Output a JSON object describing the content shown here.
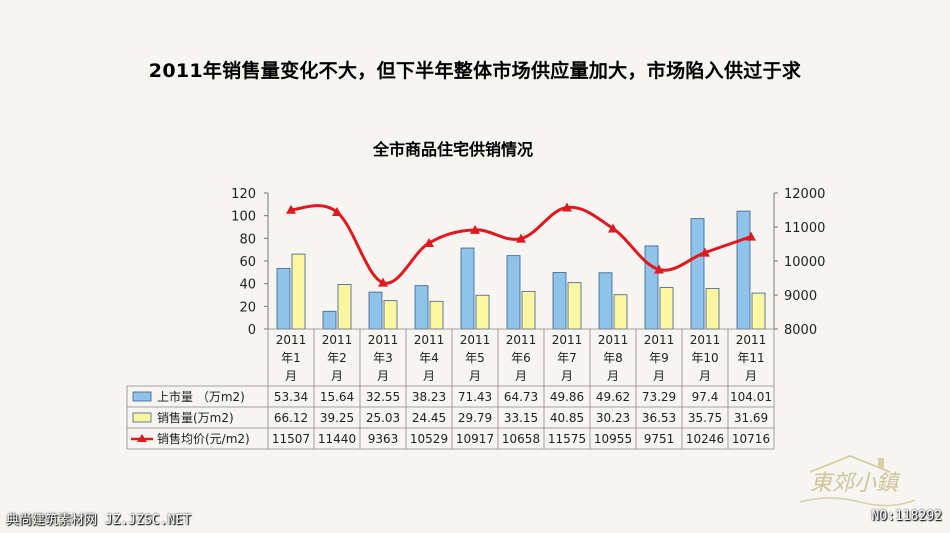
{
  "headline": "2011年销售量变化不大，但下半年整体市场供应量加大，市场陷入供过于求",
  "chart_data": {
    "type": "bar",
    "title": "全市商品住宅供销情况",
    "categories": [
      "2011年1月",
      "2011年2月",
      "2011年3月",
      "2011年4月",
      "2011年5月",
      "2011年6月",
      "2011年7月",
      "2011年8月",
      "2011年9月",
      "2011年10月",
      "2011年11月"
    ],
    "category_lines": [
      [
        "2011",
        "年1",
        "月"
      ],
      [
        "2011",
        "年2",
        "月"
      ],
      [
        "2011",
        "年3",
        "月"
      ],
      [
        "2011",
        "年4",
        "月"
      ],
      [
        "2011",
        "年5",
        "月"
      ],
      [
        "2011",
        "年6",
        "月"
      ],
      [
        "2011",
        "年7",
        "月"
      ],
      [
        "2011",
        "年8",
        "月"
      ],
      [
        "2011",
        "年9",
        "月"
      ],
      [
        "2011",
        "年10",
        "月"
      ],
      [
        "2011",
        "年11",
        "月"
      ]
    ],
    "series": [
      {
        "name": "上市量 （万m2)",
        "type": "bar",
        "axis": "left",
        "color": "#8fc3ea",
        "values": [
          53.34,
          15.64,
          32.55,
          38.23,
          71.43,
          64.73,
          49.86,
          49.62,
          73.29,
          97.4,
          104.01
        ],
        "labels": [
          "53.34",
          "15.64",
          "32.55",
          "38.23",
          "71.43",
          "64.73",
          "49.86",
          "49.62",
          "73.29",
          "97.4",
          "104.01"
        ]
      },
      {
        "name": "销售量(万m2)",
        "type": "bar",
        "axis": "left",
        "color": "#fbf7a0",
        "values": [
          66.12,
          39.25,
          25.03,
          24.45,
          29.79,
          33.15,
          40.85,
          30.23,
          36.53,
          35.75,
          31.69
        ],
        "labels": [
          "66.12",
          "39.25",
          "25.03",
          "24.45",
          "29.79",
          "33.15",
          "40.85",
          "30.23",
          "36.53",
          "35.75",
          "31.69"
        ]
      },
      {
        "name": "销售均价(元/m2)",
        "type": "line",
        "axis": "right",
        "color": "#e0181f",
        "values": [
          11507,
          11440,
          9363,
          10529,
          10917,
          10658,
          11575,
          10955,
          9751,
          10246,
          10716
        ],
        "labels": [
          "11507",
          "11440",
          "9363",
          "10529",
          "10917",
          "10658",
          "11575",
          "10955",
          "9751",
          "10246",
          "10716"
        ]
      }
    ],
    "y_left": {
      "ticks": [
        "0",
        "20",
        "40",
        "60",
        "80",
        "100",
        "120"
      ],
      "ylim": [
        0,
        120
      ]
    },
    "y_right": {
      "ticks": [
        "8000",
        "9000",
        "10000",
        "11000",
        "12000"
      ],
      "ylim": [
        8000,
        12000
      ]
    },
    "grid": false,
    "legend": "data-table"
  },
  "footer": {
    "left": "典尚建筑素材网 JZ.JZSC.NET",
    "right": "NO:118292"
  },
  "logo_text": "东郊小镇"
}
